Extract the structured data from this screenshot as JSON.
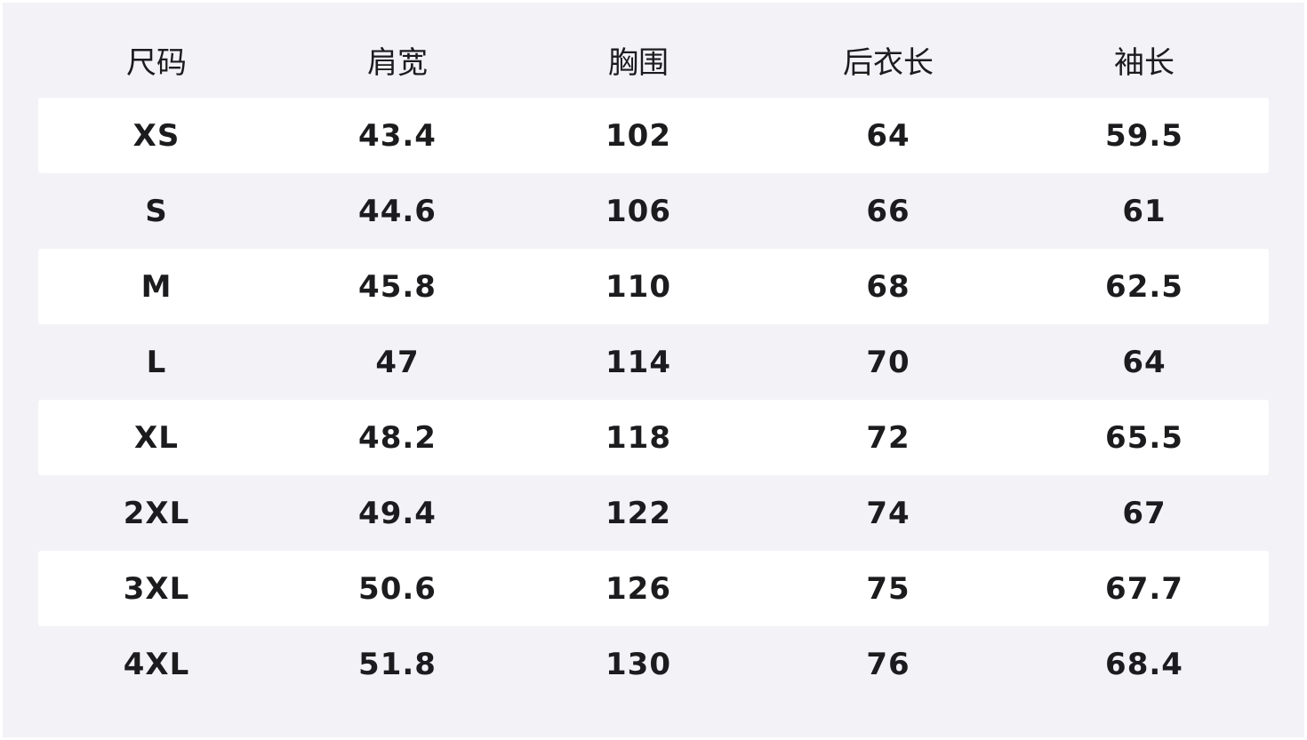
{
  "headers": [
    "尺码",
    "肩宽",
    "胸围",
    "后衣长",
    "袖长"
  ],
  "rows": [
    [
      "XS",
      "43.4",
      "102",
      "64",
      "59.5"
    ],
    [
      "S",
      "44.6",
      "106",
      "66",
      "61"
    ],
    [
      "M",
      "45.8",
      "110",
      "68",
      "62.5"
    ],
    [
      "L",
      "47",
      "114",
      "70",
      "64"
    ],
    [
      "XL",
      "48.2",
      "118",
      "72",
      "65.5"
    ],
    [
      "2XL",
      "49.4",
      "122",
      "74",
      "67"
    ],
    [
      "3XL",
      "50.6",
      "126",
      "75",
      "67.7"
    ],
    [
      "4XL",
      "51.8",
      "130",
      "76",
      "68.4"
    ]
  ],
  "colors": {
    "background": "#f2f2f7",
    "stripe": "#ffffff",
    "text": "#1c1c1e"
  }
}
